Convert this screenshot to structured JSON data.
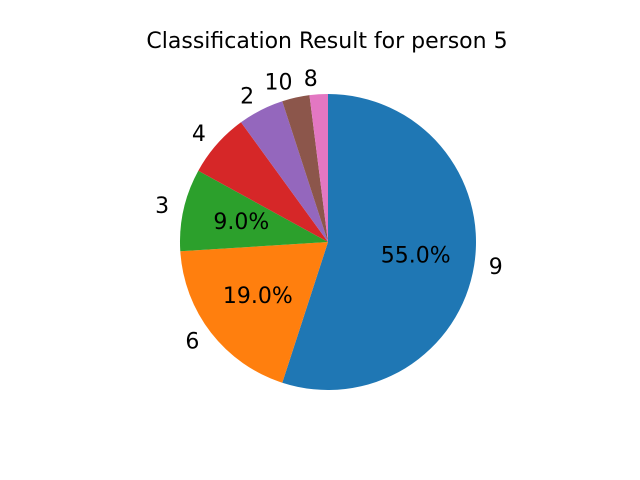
{
  "chart_data": {
    "type": "pie",
    "title": "Classification Result for person 5",
    "start_angle_deg": 90,
    "direction": "clockwise",
    "slices": [
      {
        "label": "9",
        "value": 55.0,
        "pct_label": "55.0%",
        "color": "#1f77b4"
      },
      {
        "label": "6",
        "value": 19.0,
        "pct_label": "19.0%",
        "color": "#ff7f0e"
      },
      {
        "label": "3",
        "value": 9.0,
        "pct_label": "9.0%",
        "color": "#2ca02c"
      },
      {
        "label": "4",
        "value": 7.0,
        "pct_label": "",
        "color": "#d62728"
      },
      {
        "label": "2",
        "value": 5.0,
        "pct_label": "",
        "color": "#9467bd"
      },
      {
        "label": "10",
        "value": 3.0,
        "pct_label": "",
        "color": "#8c564b"
      },
      {
        "label": "8",
        "value": 2.0,
        "pct_label": "",
        "color": "#e377c2"
      }
    ]
  }
}
